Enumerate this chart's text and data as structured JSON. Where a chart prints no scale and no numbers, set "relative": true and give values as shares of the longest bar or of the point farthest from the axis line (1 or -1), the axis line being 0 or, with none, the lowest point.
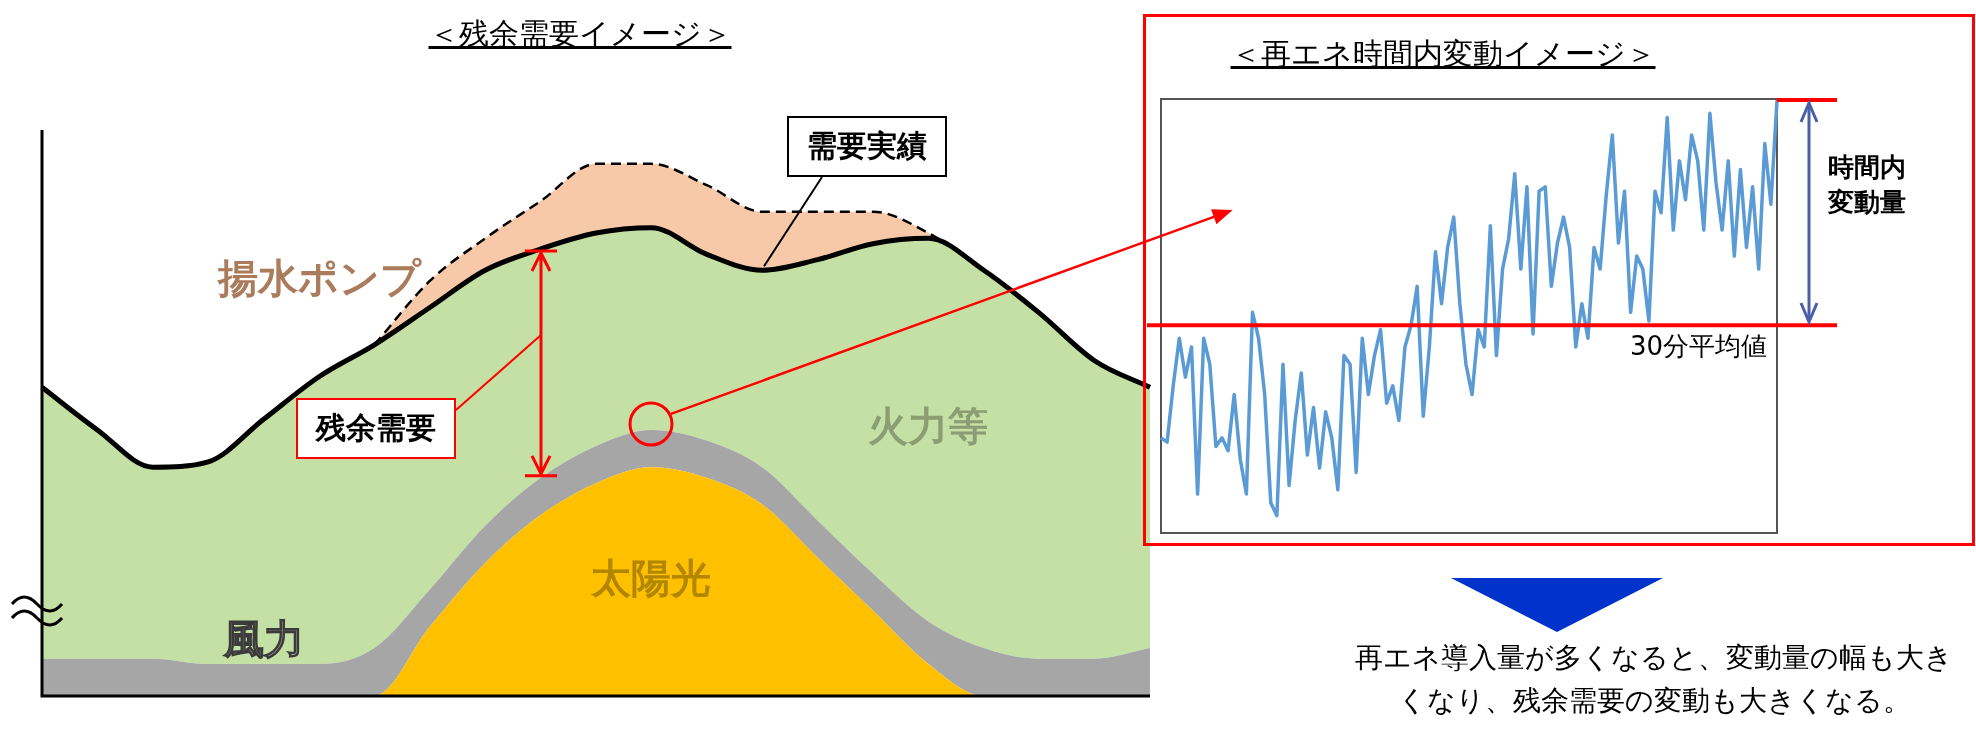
{
  "chart_data": [
    {
      "type": "area",
      "title": "＜残余需要イメージ＞",
      "relative": true,
      "stacked": true,
      "categories": [
        null,
        null,
        null,
        null,
        null,
        null,
        null,
        null,
        null,
        null,
        null,
        null,
        null,
        null,
        null,
        null,
        null,
        null,
        null,
        null,
        null
      ],
      "series": [
        {
          "name": "太陽光",
          "color": "#ffc000",
          "values": [
            0,
            0,
            0,
            0,
            0,
            0,
            0,
            0.13,
            0.25,
            0.34,
            0.4,
            0.43,
            0.41,
            0.36,
            0.26,
            0.16,
            0.06,
            0,
            0,
            0,
            0
          ]
        },
        {
          "name": "風力",
          "color": "#a6a6a6",
          "values": [
            0.07,
            0.07,
            0.07,
            0.06,
            0.06,
            0.06,
            0.09,
            0.07,
            0.07,
            0.07,
            0.07,
            0.07,
            0.07,
            0.07,
            0.07,
            0.07,
            0.08,
            0.09,
            0.07,
            0.07,
            0.09
          ]
        },
        {
          "name": "火力等",
          "color": "#c5e0a5",
          "line_style": "solid",
          "values": [
            0.51,
            0.43,
            0.36,
            0.38,
            0.46,
            0.54,
            0.57,
            0.53,
            0.48,
            0.43,
            0.4,
            0.38,
            0.35,
            0.37,
            0.49,
            0.62,
            0.72,
            0.71,
            0.65,
            0.56,
            0.49
          ]
        },
        {
          "name": "揚水ポンプ",
          "color": "#f4b183",
          "line_style": "dashed",
          "values": [
            null,
            null,
            null,
            null,
            null,
            null,
            0,
            0.05,
            0.06,
            0.09,
            0.13,
            0.12,
            0.13,
            0.11,
            0.09,
            0.06,
            0.01,
            0,
            null,
            null,
            null
          ]
        }
      ],
      "annotations": [
        "需要実績",
        "残余需要"
      ]
    },
    {
      "type": "line",
      "title": "＜再エネ時間内変動イメージ＞",
      "relative": true,
      "categories": [
        null,
        null,
        null,
        null,
        null,
        null,
        null,
        null,
        null,
        null,
        null,
        null,
        null,
        null,
        null,
        null,
        null,
        null,
        null,
        null,
        null,
        null,
        null,
        null,
        null,
        null,
        null,
        null,
        null,
        null,
        null,
        null,
        null,
        null,
        null,
        null,
        null,
        null,
        null,
        null,
        null,
        null,
        null,
        null,
        null,
        null,
        null,
        null,
        null,
        null,
        null,
        null,
        null,
        null,
        null,
        null,
        null,
        null,
        null,
        null,
        null,
        null,
        null,
        null,
        null,
        null,
        null,
        null,
        null,
        null,
        null,
        null,
        null,
        null,
        null,
        null,
        null,
        null,
        null,
        null,
        null,
        null,
        null,
        null,
        null,
        null,
        null,
        null,
        null,
        null,
        null,
        null,
        null,
        null,
        null,
        null,
        null,
        null,
        null,
        null,
        null,
        null
      ],
      "series": [
        {
          "color": "#5b9bd5",
          "values": [
            0.22,
            0.21,
            0.34,
            0.45,
            0.36,
            0.43,
            0.09,
            0.45,
            0.39,
            0.2,
            0.22,
            0.19,
            0.32,
            0.17,
            0.09,
            0.51,
            0.45,
            0.32,
            0.07,
            0.04,
            0.39,
            0.11,
            0.26,
            0.37,
            0.18,
            0.29,
            0.15,
            0.28,
            0.22,
            0.1,
            0.41,
            0.39,
            0.14,
            0.45,
            0.32,
            0.41,
            0.47,
            0.3,
            0.34,
            0.26,
            0.43,
            0.48,
            0.57,
            0.27,
            0.43,
            0.65,
            0.53,
            0.66,
            0.73,
            0.53,
            0.39,
            0.32,
            0.47,
            0.43,
            0.71,
            0.41,
            0.61,
            0.68,
            0.83,
            0.61,
            0.8,
            0.46,
            0.79,
            0.8,
            0.57,
            0.67,
            0.73,
            0.66,
            0.43,
            0.53,
            0.45,
            0.66,
            0.61,
            0.78,
            0.92,
            0.67,
            0.79,
            0.51,
            0.64,
            0.61,
            0.49,
            0.79,
            0.74,
            0.96,
            0.7,
            0.86,
            0.77,
            0.92,
            0.86,
            0.7,
            0.97,
            0.81,
            0.7,
            0.86,
            0.64,
            0.84,
            0.66,
            0.8,
            0.61,
            0.9,
            0.76,
            1
          ]
        }
      ],
      "ref_lines": [
        {
          "axis": "y",
          "value": 0.48,
          "label": "30分平均値",
          "color": "#ff0000"
        }
      ],
      "annotations": [
        "時間内変動量",
        "再エネ導入量が多くなると、変動量の幅も大きくなり、残余需要の変動も大きくなる。"
      ]
    }
  ]
}
